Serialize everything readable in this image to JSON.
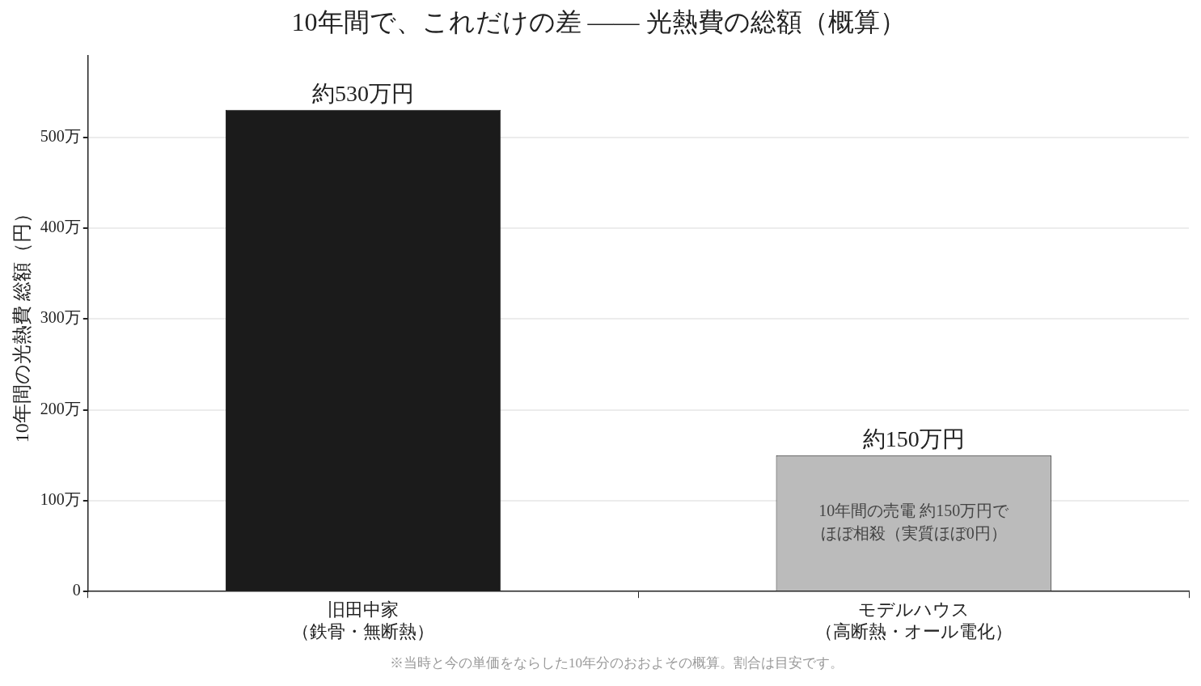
{
  "chart_data": {
    "type": "bar",
    "title": "10年間で、これだけの差 —— 光熱費の総額（概算）",
    "ylabel": "10年間の光熱費 総額（円）",
    "categories": [
      "旧田中家（鉄骨・無断熱）",
      "モデルハウス（高断熱・オール電化）"
    ],
    "values": [
      530,
      150
    ],
    "colors": [
      "#1b1b1b",
      "#bbbbbb"
    ],
    "value_labels": [
      "約530万円",
      "約150万円"
    ],
    "ylim": [
      0,
      590
    ],
    "yticks": [
      {
        "value": 0,
        "label": "0"
      },
      {
        "value": 100,
        "label": "100万"
      },
      {
        "value": 200,
        "label": "200万"
      },
      {
        "value": 300,
        "label": "300万"
      },
      {
        "value": 400,
        "label": "400万"
      },
      {
        "value": 500,
        "label": "500万"
      }
    ],
    "grid": "y",
    "annotations": [
      "10年間の売電 約150万円でほぼ相殺（実質ほぼ0円）",
      "※当時と今の単価をならした10年分のおおよその概算。割合は目安です。"
    ]
  }
}
